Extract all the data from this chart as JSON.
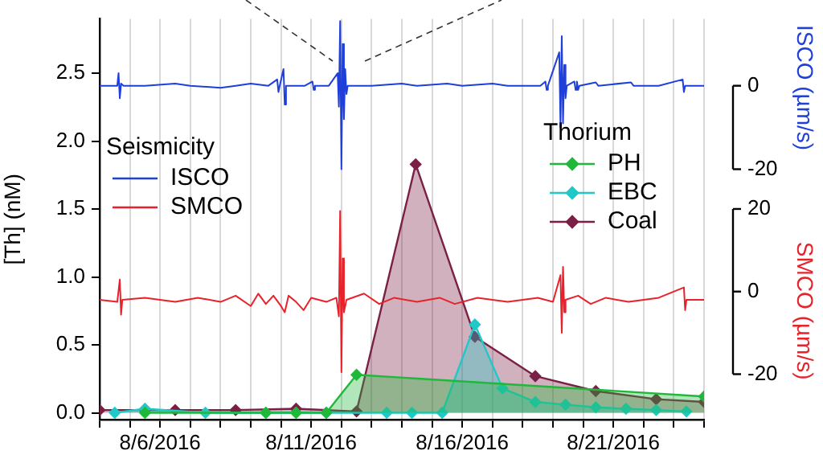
{
  "chart_data": {
    "type": "line",
    "ylabel": "[Th] (nM)",
    "y2label": "ISCO (µm/s)",
    "y3label": "SMCO (µm/s)",
    "legend_title": "Thorium",
    "annotations": [
      "Seismicity"
    ],
    "legend": "right",
    "grid": "x",
    "marker": "diamond",
    "xlim": [
      "2016-08-04",
      "2016-08-24"
    ],
    "xticks": [
      {
        "value": "2016-08-04",
        "label": null
      },
      {
        "value": "2016-08-05",
        "label": null
      },
      {
        "value": "2016-08-06",
        "label": "8/6/2016"
      },
      {
        "value": "2016-08-07",
        "label": null
      },
      {
        "value": "2016-08-08",
        "label": null
      },
      {
        "value": "2016-08-09",
        "label": null
      },
      {
        "value": "2016-08-10",
        "label": null
      },
      {
        "value": "2016-08-11",
        "label": "8/11/2016"
      },
      {
        "value": "2016-08-12",
        "label": null
      },
      {
        "value": "2016-08-13",
        "label": null
      },
      {
        "value": "2016-08-14",
        "label": null
      },
      {
        "value": "2016-08-15",
        "label": null
      },
      {
        "value": "2016-08-16",
        "label": "8/16/2016"
      },
      {
        "value": "2016-08-17",
        "label": null
      },
      {
        "value": "2016-08-18",
        "label": null
      },
      {
        "value": "2016-08-19",
        "label": null
      },
      {
        "value": "2016-08-20",
        "label": null
      },
      {
        "value": "2016-08-21",
        "label": "8/21/2016"
      },
      {
        "value": "2016-08-22",
        "label": null
      },
      {
        "value": "2016-08-23",
        "label": null
      },
      {
        "value": "2016-08-24",
        "label": null
      }
    ],
    "ylim": [
      -0.05,
      2.9
    ],
    "yticks": [
      {
        "value": 0,
        "label": "0.0"
      },
      {
        "value": 0.5,
        "label": "0.5"
      },
      {
        "value": 1,
        "label": "1.0"
      },
      {
        "value": 1.5,
        "label": "1.5"
      },
      {
        "value": 2,
        "label": "2.0"
      },
      {
        "value": 2.5,
        "label": "2.5"
      }
    ],
    "y2lim": [
      -80,
      16
    ],
    "y2ticks": [
      -20,
      0
    ],
    "y3lim": [
      -31,
      66
    ],
    "y3ticks": [
      -20,
      0,
      20
    ],
    "series": [
      {
        "name": "ISCO",
        "type": "line",
        "axis": "y2",
        "marker": "none",
        "color": "#1f3fd9",
        "x": [
          "2016-08-04T00:00",
          "2016-08-04T14:00",
          "2016-08-04T15:00",
          "2016-08-04T16:00",
          "2016-08-04T17:00",
          "2016-08-04T19:00",
          "2016-08-05T12:00",
          "2016-08-06T12:00",
          "2016-08-07T00:00",
          "2016-08-08T00:00",
          "2016-08-08T12:00",
          "2016-08-09T00:00",
          "2016-08-09T14:00",
          "2016-08-09T21:00",
          "2016-08-09T22:00",
          "2016-08-09T23:00",
          "2016-08-10T02:00",
          "2016-08-10T03:00",
          "2016-08-10T04:00",
          "2016-08-10T19:00",
          "2016-08-11T01:00",
          "2016-08-11T02:00",
          "2016-08-11T03:00",
          "2016-08-11T14:00",
          "2016-08-11T21:00",
          "2016-08-11T22:00",
          "2016-08-11T23:00",
          "2016-08-12T00:00",
          "2016-08-12T01:00",
          "2016-08-12T02:00",
          "2016-08-12T03:00",
          "2016-08-12T04:00",
          "2016-08-12T05:00",
          "2016-08-13T00:00",
          "2016-08-14T00:00",
          "2016-08-14T12:00",
          "2016-08-15T12:00",
          "2016-08-16T00:00",
          "2016-08-17T00:00",
          "2016-08-17T12:00",
          "2016-08-18T14:00",
          "2016-08-18T18:00",
          "2016-08-18T19:00",
          "2016-08-18T20:00",
          "2016-08-19T05:00",
          "2016-08-19T06:00",
          "2016-08-19T07:00",
          "2016-08-19T08:00",
          "2016-08-19T09:00",
          "2016-08-19T10:00",
          "2016-08-19T11:00",
          "2016-08-19T17:00",
          "2016-08-19T18:00",
          "2016-08-19T19:00",
          "2016-08-19T20:00",
          "2016-08-19T21:00",
          "2016-08-20T10:00",
          "2016-08-20T12:00",
          "2016-08-21T14:00",
          "2016-08-21T16:00",
          "2016-08-22T12:00",
          "2016-08-23T07:00",
          "2016-08-23T08:00",
          "2016-08-23T09:00",
          "2016-08-24T00:00"
        ],
        "values": [
          0,
          0,
          3,
          -3,
          0.5,
          0,
          0,
          0.5,
          0,
          -0.5,
          0,
          0.5,
          0,
          1.5,
          -1.5,
          0,
          4,
          -4.5,
          0,
          0,
          1,
          -1,
          0,
          0,
          3,
          -5,
          15.5,
          -20,
          10,
          -8,
          4,
          -2,
          0,
          0,
          0.5,
          0,
          0.5,
          0,
          0.5,
          0,
          0,
          1,
          -1,
          0,
          8,
          -10,
          11.9,
          -9,
          5,
          -3,
          0,
          1,
          -1,
          1,
          -1,
          0,
          0.8,
          0,
          0.8,
          0,
          0,
          1.5,
          -1.5,
          0,
          0
        ]
      },
      {
        "name": "SMCO",
        "type": "line",
        "axis": "y3",
        "marker": "none",
        "color": "#e8222a",
        "x": [
          "2016-08-04T00:00",
          "2016-08-04T14:00",
          "2016-08-04T16:00",
          "2016-08-04T17:00",
          "2016-08-04T18:00",
          "2016-08-05T12:00",
          "2016-08-06T12:00",
          "2016-08-07T06:00",
          "2016-08-08T00:00",
          "2016-08-08T12:00",
          "2016-08-09T00:00",
          "2016-08-09T06:00",
          "2016-08-09T12:00",
          "2016-08-09T18:00",
          "2016-08-10T00:00",
          "2016-08-10T03:00",
          "2016-08-10T06:00",
          "2016-08-10T12:00",
          "2016-08-10T18:00",
          "2016-08-11T00:00",
          "2016-08-11T12:00",
          "2016-08-11T20:00",
          "2016-08-11T22:00",
          "2016-08-11T23:00",
          "2016-08-12T00:00",
          "2016-08-12T01:00",
          "2016-08-12T02:00",
          "2016-08-12T04:00",
          "2016-08-12T18:00",
          "2016-08-13T06:00",
          "2016-08-13T18:00",
          "2016-08-14T12:00",
          "2016-08-15T06:00",
          "2016-08-15T18:00",
          "2016-08-16T12:00",
          "2016-08-17T12:00",
          "2016-08-18T12:00",
          "2016-08-19T00:00",
          "2016-08-19T06:00",
          "2016-08-19T07:00",
          "2016-08-19T08:00",
          "2016-08-19T09:00",
          "2016-08-19T10:00",
          "2016-08-19T20:00",
          "2016-08-20T06:00",
          "2016-08-20T18:00",
          "2016-08-21T12:00",
          "2016-08-22T12:00",
          "2016-08-23T08:00",
          "2016-08-23T09:00",
          "2016-08-23T10:00",
          "2016-08-24T00:00"
        ],
        "values": [
          -2,
          -2.5,
          2.9,
          -5.6,
          -2,
          -1.5,
          -2.5,
          -1.5,
          -2.5,
          -1,
          -3.5,
          -0.5,
          -3,
          -1,
          -3.5,
          -5,
          -1,
          -2.5,
          -4.5,
          -1.5,
          -2.5,
          -1.5,
          -6,
          19.5,
          -19.5,
          8,
          -5,
          -2,
          -0.5,
          -3,
          -1.5,
          -2.5,
          -1.5,
          -3,
          -1.5,
          -2.5,
          -1.5,
          -2.5,
          4,
          -10,
          6,
          -5,
          -2,
          -1,
          -3,
          -1.5,
          -2.5,
          -1.5,
          1,
          -4.5,
          -2,
          -2
        ]
      },
      {
        "name": "PH",
        "type": "area",
        "color": "#1fb83a",
        "x": [
          "2016-08-05T12:00",
          "2016-08-09T12:00",
          "2016-08-10T12:00",
          "2016-08-11T12:00",
          "2016-08-12T12:00",
          "2016-08-24T00:00"
        ],
        "values": [
          0,
          0,
          0,
          0,
          0.28,
          0.12
        ]
      },
      {
        "name": "EBC",
        "type": "area",
        "color": "#20c8c8",
        "x": [
          "2016-08-04T12:00",
          "2016-08-05T12:00",
          "2016-08-07T12:00",
          "2016-08-09T12:00",
          "2016-08-10T12:00",
          "2016-08-11T12:00",
          "2016-08-13T12:00",
          "2016-08-14T08:00",
          "2016-08-15T08:00",
          "2016-08-16T10:00",
          "2016-08-17T08:00",
          "2016-08-18T10:00",
          "2016-08-19T10:00",
          "2016-08-20T10:00",
          "2016-08-21T10:00",
          "2016-08-22T10:00",
          "2016-08-23T10:00"
        ],
        "values": [
          0,
          0.03,
          0,
          0,
          0,
          0,
          0,
          0,
          0,
          0.65,
          0.18,
          0.08,
          0.06,
          0.04,
          0.03,
          0.02,
          0.01
        ]
      },
      {
        "name": "Coal",
        "type": "area",
        "color": "#7a1f45",
        "x": [
          "2016-08-04T00:00",
          "2016-08-05T12:00",
          "2016-08-06T12:00",
          "2016-08-08T12:00",
          "2016-08-10T12:00",
          "2016-08-12T12:00",
          "2016-08-14T11:00",
          "2016-08-16T10:00",
          "2016-08-18T10:00",
          "2016-08-20T10:00",
          "2016-08-22T10:00",
          "2016-08-24T00:00"
        ],
        "values": [
          0.02,
          0.02,
          0.02,
          0.02,
          0.03,
          0.01,
          1.83,
          0.56,
          0.27,
          0.16,
          0.1,
          0.08
        ]
      }
    ]
  }
}
